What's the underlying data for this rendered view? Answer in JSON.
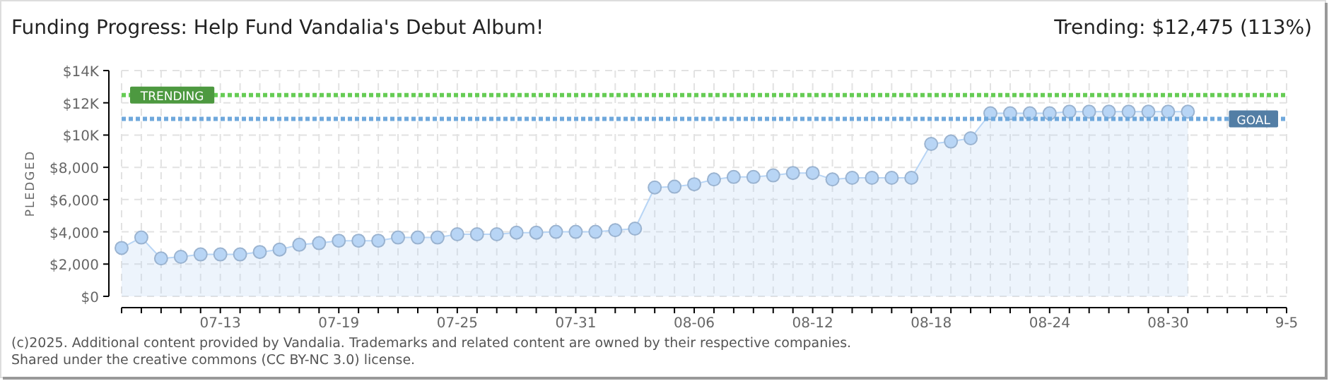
{
  "chart_data": {
    "type": "area",
    "title": "Funding Progress: Help Fund Vandalia's Debut Album!",
    "subtitle": "Trending: $12,475 (113%)",
    "ylabel": "PLEDGED",
    "x": [
      "--07-08",
      "--07-09",
      "--07-10",
      "--07-11",
      "--07-12",
      "--07-13",
      "--07-14",
      "--07-15",
      "--07-16",
      "--07-17",
      "--07-18",
      "--07-19",
      "--07-20",
      "--07-21",
      "--07-22",
      "--07-23",
      "--07-24",
      "--07-25",
      "--07-26",
      "--07-27",
      "--07-28",
      "--07-29",
      "--07-30",
      "--07-31",
      "--08-01",
      "--08-02",
      "--08-03",
      "--08-04",
      "--08-05",
      "--08-06",
      "--08-07",
      "--08-08",
      "--08-09",
      "--08-10",
      "--08-11",
      "--08-12",
      "--08-13",
      "--08-14",
      "--08-15",
      "--08-16",
      "--08-17",
      "--08-18",
      "--08-19",
      "--08-20",
      "--08-21",
      "--08-22",
      "--08-23",
      "--08-24",
      "--08-25",
      "--08-26",
      "--08-27",
      "--08-28",
      "--08-29",
      "--08-30",
      "--08-31"
    ],
    "series": [
      {
        "color": "#b8d5f5",
        "values": [
          3000,
          3650,
          2350,
          2450,
          2600,
          2600,
          2600,
          2750,
          2900,
          3200,
          3300,
          3450,
          3450,
          3450,
          3650,
          3650,
          3650,
          3850,
          3850,
          3850,
          3950,
          3950,
          4000,
          4000,
          4000,
          4100,
          4200,
          6750,
          6800,
          6950,
          7250,
          7400,
          7400,
          7500,
          7650,
          7650,
          7250,
          7350,
          7350,
          7350,
          7350,
          9450,
          9600,
          9800,
          11350,
          11350,
          11350,
          11350,
          11450,
          11450,
          11450,
          11450,
          11450,
          11450,
          11450
        ]
      }
    ],
    "xlim": [
      "--07-08",
      "--09-05"
    ],
    "xticks": [
      {
        "value": "--07-08",
        "label": null
      },
      {
        "value": "--07-09",
        "label": null
      },
      {
        "value": "--07-10",
        "label": null
      },
      {
        "value": "--07-11",
        "label": null
      },
      {
        "value": "--07-12",
        "label": null
      },
      {
        "value": "--07-13",
        "label": "07-13"
      },
      {
        "value": "--07-14",
        "label": null
      },
      {
        "value": "--07-15",
        "label": null
      },
      {
        "value": "--07-16",
        "label": null
      },
      {
        "value": "--07-17",
        "label": null
      },
      {
        "value": "--07-18",
        "label": null
      },
      {
        "value": "--07-19",
        "label": "07-19"
      },
      {
        "value": "--07-20",
        "label": null
      },
      {
        "value": "--07-21",
        "label": null
      },
      {
        "value": "--07-22",
        "label": null
      },
      {
        "value": "--07-23",
        "label": null
      },
      {
        "value": "--07-24",
        "label": null
      },
      {
        "value": "--07-25",
        "label": "07-25"
      },
      {
        "value": "--07-26",
        "label": null
      },
      {
        "value": "--07-27",
        "label": null
      },
      {
        "value": "--07-28",
        "label": null
      },
      {
        "value": "--07-29",
        "label": null
      },
      {
        "value": "--07-30",
        "label": null
      },
      {
        "value": "--07-31",
        "label": "07-31"
      },
      {
        "value": "--08-01",
        "label": null
      },
      {
        "value": "--08-02",
        "label": null
      },
      {
        "value": "--08-03",
        "label": null
      },
      {
        "value": "--08-04",
        "label": null
      },
      {
        "value": "--08-05",
        "label": null
      },
      {
        "value": "--08-06",
        "label": "08-06"
      },
      {
        "value": "--08-07",
        "label": null
      },
      {
        "value": "--08-08",
        "label": null
      },
      {
        "value": "--08-09",
        "label": null
      },
      {
        "value": "--08-10",
        "label": null
      },
      {
        "value": "--08-11",
        "label": null
      },
      {
        "value": "--08-12",
        "label": "08-12"
      },
      {
        "value": "--08-13",
        "label": null
      },
      {
        "value": "--08-14",
        "label": null
      },
      {
        "value": "--08-15",
        "label": null
      },
      {
        "value": "--08-16",
        "label": null
      },
      {
        "value": "--08-17",
        "label": null
      },
      {
        "value": "--08-18",
        "label": "08-18"
      },
      {
        "value": "--08-19",
        "label": null
      },
      {
        "value": "--08-20",
        "label": null
      },
      {
        "value": "--08-21",
        "label": null
      },
      {
        "value": "--08-22",
        "label": null
      },
      {
        "value": "--08-23",
        "label": null
      },
      {
        "value": "--08-24",
        "label": "08-24"
      },
      {
        "value": "--08-25",
        "label": null
      },
      {
        "value": "--08-26",
        "label": null
      },
      {
        "value": "--08-27",
        "label": null
      },
      {
        "value": "--08-28",
        "label": null
      },
      {
        "value": "--08-29",
        "label": null
      },
      {
        "value": "--08-30",
        "label": "08-30"
      },
      {
        "value": "--08-31",
        "label": null
      },
      {
        "value": "--09-01",
        "label": null
      },
      {
        "value": "--09-02",
        "label": null
      },
      {
        "value": "--09-03",
        "label": null
      },
      {
        "value": "--09-04",
        "label": null
      },
      {
        "value": "--09-05",
        "label": "9-5"
      }
    ],
    "ylim": [
      0,
      14000
    ],
    "yticks": [
      {
        "value": 0,
        "label": "$0"
      },
      {
        "value": 2000,
        "label": "$2,000"
      },
      {
        "value": 4000,
        "label": "$4,000"
      },
      {
        "value": 6000,
        "label": "$6,000"
      },
      {
        "value": 8000,
        "label": "$8,000"
      },
      {
        "value": 10000,
        "label": "$10K"
      },
      {
        "value": 12000,
        "label": "$12K"
      },
      {
        "value": 14000,
        "label": "$14K"
      }
    ],
    "grid": true,
    "marker": "circle",
    "line_style": "solid",
    "ref_lines": [
      {
        "axis": "y",
        "value": 12475,
        "label": "TRENDING",
        "color": "#66cc55",
        "line_style": "dotted"
      },
      {
        "axis": "y",
        "value": 11000,
        "label": "GOAL",
        "color": "#6fa8dc",
        "line_style": "dotted"
      }
    ],
    "annotations": [
      "(c)2025. Additional content provided by Vandalia. Trademarks and related content are owned by their respective companies.",
      "Shared under the creative commons (CC BY-NC 3.0) license."
    ]
  }
}
